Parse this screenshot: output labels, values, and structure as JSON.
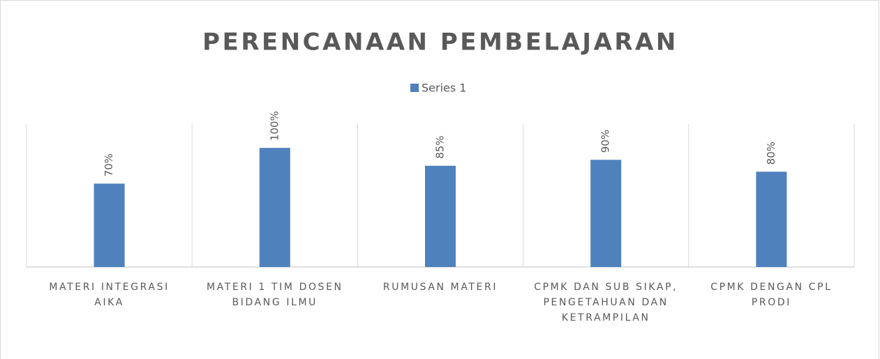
{
  "chart_data": {
    "type": "bar",
    "title": "PERENCANAAN PEMBELAJARAN",
    "categories": [
      "MATERI INTEGRASI AIKA",
      "MATERI 1 TIM DOSEN BIDANG ILMU",
      "RUMUSAN MATERI",
      "CPMK DAN SUB SIKAP, PENGETAHUAN DAN KETRAMPILAN",
      "CPMK DENGAN CPL PRODI"
    ],
    "series": [
      {
        "name": "Series 1",
        "color": "#4f81bd",
        "values": [
          70,
          100,
          85,
          90,
          80
        ],
        "value_labels": [
          "70%",
          "100%",
          "85%",
          "90%",
          "80%"
        ]
      }
    ],
    "ylim": [
      0,
      120
    ],
    "legend": "top"
  }
}
